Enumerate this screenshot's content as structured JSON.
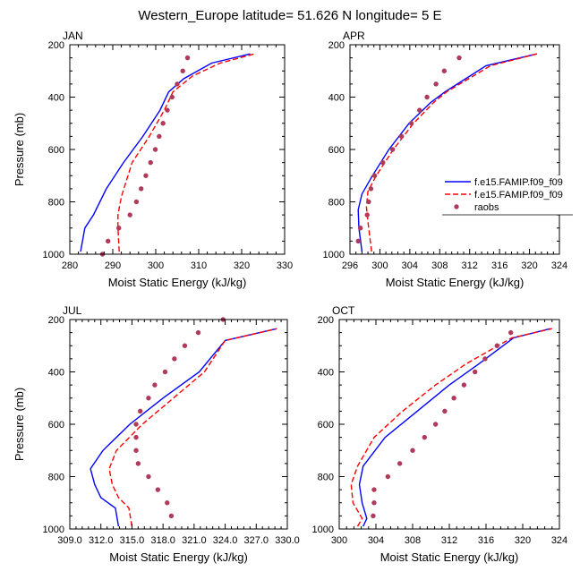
{
  "figure": {
    "title": "Western_Europe  latitude= 51.626 N longitude= 5 E",
    "legend_entries": [
      {
        "label": "f.e15.FAMIP.f09_f09",
        "style": "solid",
        "color": "#0000ff"
      },
      {
        "label": "f.e15.FAMIP.f09_f09",
        "style": "dashed",
        "color": "#ff0000"
      },
      {
        "label": "raobs",
        "style": "marker",
        "color": "#b03a5a"
      }
    ]
  },
  "chart_data": [
    {
      "type": "line",
      "panel_label": "JAN",
      "xlabel": "Moist Static Energy (kJ/kg)",
      "ylabel": "Pressure (mb)",
      "xlim": [
        280,
        330
      ],
      "ylim": [
        1000,
        200
      ],
      "y_reversed": true,
      "xticks": [
        280,
        290,
        300,
        310,
        320,
        330
      ],
      "xtick_labels": [
        "280",
        "290",
        "300",
        "310",
        "320",
        "330"
      ],
      "yticks": [
        200,
        400,
        600,
        800,
        1000
      ],
      "ytick_labels": [
        "200",
        "400",
        "600",
        "800",
        "1000"
      ],
      "series": [
        {
          "style": "solid",
          "color": "#0000ff",
          "x": [
            282.5,
            283.5,
            285.5,
            288.5,
            292.5,
            297.0,
            301.0,
            303.0,
            306.5,
            313.0,
            322.0
          ],
          "y": [
            990,
            900,
            850,
            750,
            650,
            550,
            450,
            380,
            330,
            270,
            235
          ]
        },
        {
          "style": "dashed",
          "color": "#ff0000",
          "x": [
            291.5,
            291.2,
            291.2,
            292.0,
            294.5,
            298.5,
            302.0,
            304.0,
            308.5,
            315.0,
            323.0
          ],
          "y": [
            990,
            900,
            850,
            780,
            650,
            550,
            450,
            380,
            320,
            270,
            235
          ]
        },
        {
          "style": "marker",
          "color": "#b03a5a",
          "x": [
            287.6,
            288.9,
            291.4,
            294.0,
            295.5,
            296.6,
            297.7,
            298.8,
            299.9,
            300.8,
            301.7,
            302.7,
            303.8,
            305.0,
            306.3,
            307.4
          ],
          "y": [
            1000,
            950,
            900,
            850,
            800,
            750,
            700,
            650,
            600,
            550,
            500,
            450,
            400,
            350,
            300,
            250
          ]
        }
      ]
    },
    {
      "type": "line",
      "panel_label": "APR",
      "xlabel": "Moist Static Energy (kJ/kg)",
      "ylabel": "",
      "xlim": [
        296,
        324
      ],
      "ylim": [
        1000,
        200
      ],
      "y_reversed": true,
      "xticks": [
        296,
        300,
        304,
        308,
        312,
        316,
        320,
        324
      ],
      "xtick_labels": [
        "296",
        "300",
        "304",
        "308",
        "312",
        "316",
        "320",
        "324"
      ],
      "yticks": [
        200,
        400,
        600,
        800,
        1000
      ],
      "ytick_labels": [
        "200",
        "400",
        "600",
        "800",
        "1000"
      ],
      "series": [
        {
          "style": "solid",
          "color": "#0000ff",
          "x": [
            297.6,
            297.2,
            297.1,
            297.6,
            299.0,
            301.2,
            303.9,
            306.8,
            308.7,
            314.2,
            321.0
          ],
          "y": [
            990,
            900,
            830,
            770,
            700,
            600,
            500,
            420,
            380,
            280,
            235
          ]
        },
        {
          "style": "dashed",
          "color": "#ff0000",
          "x": [
            298.9,
            298.5,
            298.2,
            298.4,
            299.5,
            301.8,
            304.5,
            307.2,
            308.9,
            314.8,
            321.0
          ],
          "y": [
            990,
            900,
            820,
            760,
            700,
            600,
            500,
            420,
            380,
            280,
            235
          ]
        },
        {
          "style": "marker",
          "color": "#b03a5a",
          "x": [
            297.1,
            297.4,
            298.3,
            298.5,
            298.8,
            299.3,
            300.4,
            301.7,
            302.9,
            304.2,
            305.3,
            306.3,
            307.5,
            308.6,
            310.6
          ],
          "y": [
            950,
            900,
            850,
            800,
            750,
            700,
            650,
            600,
            550,
            500,
            450,
            400,
            350,
            300,
            250
          ]
        }
      ]
    },
    {
      "type": "line",
      "panel_label": "JUL",
      "xlabel": "Moist Static Energy (kJ/kg)",
      "ylabel": "Pressure (mb)",
      "xlim": [
        309,
        330
      ],
      "ylim": [
        1000,
        200
      ],
      "y_reversed": true,
      "xticks": [
        309,
        312,
        315,
        318,
        321,
        324,
        327,
        330
      ],
      "xtick_labels": [
        "309.0",
        "312.0",
        "315.0",
        "318.0",
        "321.0",
        "324.0",
        "327.0",
        "330.0"
      ],
      "yticks": [
        200,
        400,
        600,
        800,
        1000
      ],
      "ytick_labels": [
        "200",
        "400",
        "600",
        "800",
        "1000"
      ],
      "series": [
        {
          "style": "solid",
          "color": "#0000ff",
          "x": [
            313.7,
            313.4,
            312.0,
            311.4,
            311.0,
            312.2,
            314.8,
            318.0,
            321.5,
            324.0,
            329.0
          ],
          "y": [
            990,
            920,
            880,
            830,
            770,
            700,
            600,
            500,
            400,
            280,
            235
          ]
        },
        {
          "style": "dashed",
          "color": "#ff0000",
          "x": [
            315.0,
            314.7,
            313.7,
            313.1,
            312.8,
            313.5,
            316.0,
            319.0,
            322.0,
            324.0,
            329.0
          ],
          "y": [
            990,
            920,
            880,
            830,
            770,
            700,
            600,
            500,
            400,
            280,
            235
          ]
        },
        {
          "style": "marker",
          "color": "#b03a5a",
          "x": [
            318.8,
            318.4,
            317.5,
            316.6,
            315.6,
            315.4,
            315.4,
            315.4,
            315.8,
            316.6,
            317.2,
            318.2,
            319.1,
            320.1,
            321.4,
            323.8
          ],
          "y": [
            950,
            900,
            850,
            800,
            750,
            700,
            650,
            600,
            550,
            500,
            450,
            400,
            350,
            300,
            250,
            200
          ]
        }
      ]
    },
    {
      "type": "line",
      "panel_label": "OCT",
      "xlabel": "Moist Static Energy (kJ/kg)",
      "ylabel": "",
      "xlim": [
        300,
        324
      ],
      "ylim": [
        1000,
        200
      ],
      "y_reversed": true,
      "xticks": [
        300,
        304,
        308,
        312,
        316,
        320,
        324
      ],
      "xtick_labels": [
        "300",
        "304",
        "308",
        "312",
        "316",
        "320",
        "324"
      ],
      "yticks": [
        200,
        400,
        600,
        800,
        1000
      ],
      "ytick_labels": [
        "200",
        "400",
        "600",
        "800",
        "1000"
      ],
      "series": [
        {
          "style": "solid",
          "color": "#0000ff",
          "x": [
            302.6,
            303.0,
            302.5,
            302.2,
            302.6,
            305.0,
            308.5,
            312.0,
            315.2,
            319.0,
            323.0
          ],
          "y": [
            990,
            960,
            900,
            830,
            760,
            650,
            550,
            450,
            370,
            270,
            235
          ]
        },
        {
          "style": "dashed",
          "color": "#ff0000",
          "x": [
            302.0,
            302.5,
            301.5,
            301.3,
            302.0,
            303.8,
            306.9,
            310.5,
            313.8,
            318.8,
            323.2
          ],
          "y": [
            990,
            960,
            900,
            830,
            760,
            650,
            550,
            450,
            370,
            270,
            235
          ]
        },
        {
          "style": "marker",
          "color": "#b03a5a",
          "x": [
            303.7,
            303.8,
            303.8,
            305.3,
            306.6,
            308.0,
            309.3,
            310.5,
            311.5,
            312.5,
            313.6,
            314.8,
            315.9,
            317.2,
            318.7
          ],
          "y": [
            950,
            900,
            850,
            800,
            750,
            700,
            650,
            600,
            550,
            500,
            450,
            400,
            350,
            300,
            250
          ]
        }
      ]
    }
  ]
}
